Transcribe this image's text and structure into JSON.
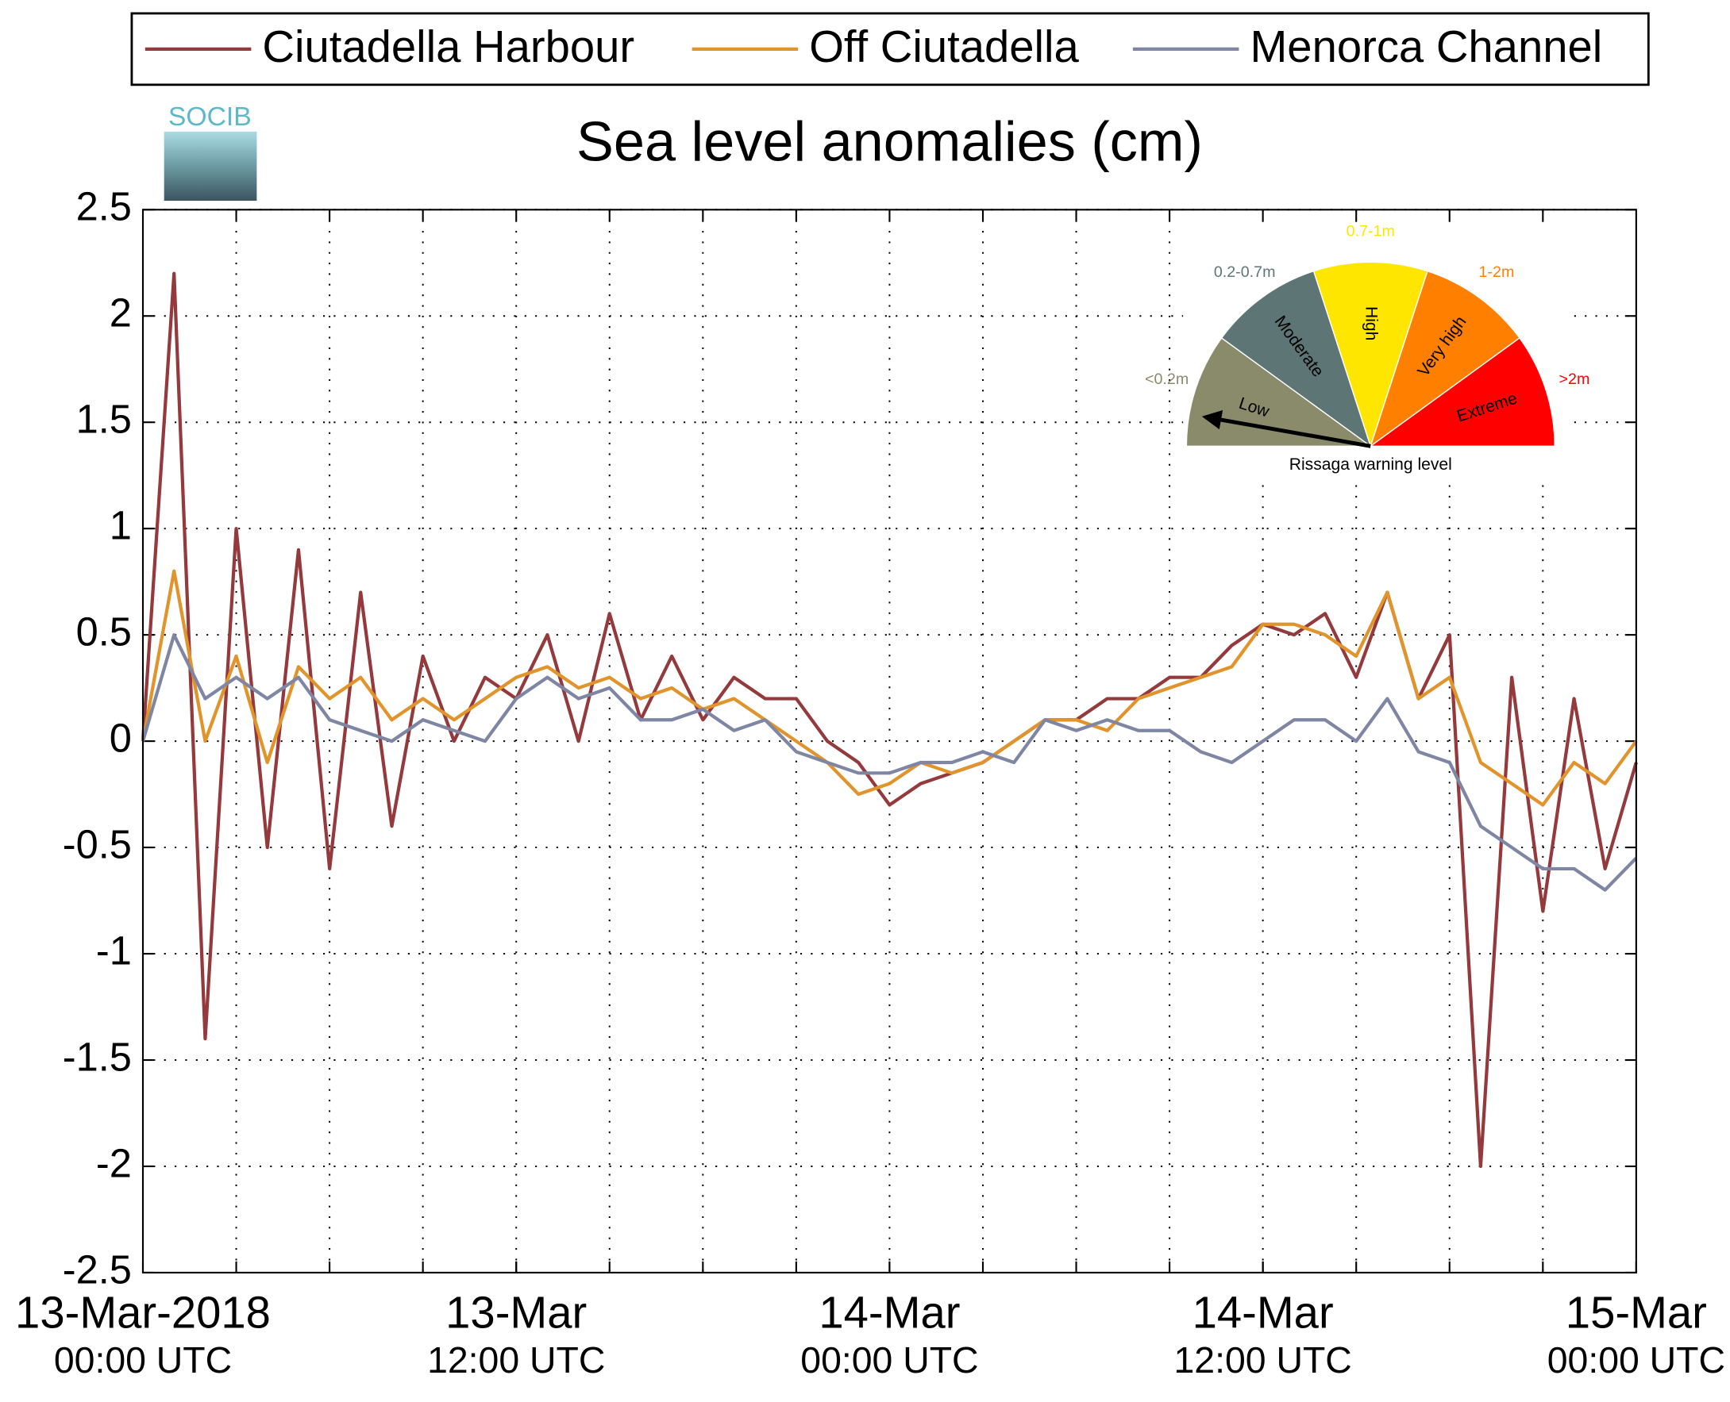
{
  "chart_data": {
    "type": "line",
    "title": "Sea level anomalies (cm)",
    "logo_text": "SOCIB",
    "x": [
      "2018-03-13T00:00",
      "2018-03-13T01:00",
      "2018-03-13T02:00",
      "2018-03-13T03:00",
      "2018-03-13T04:00",
      "2018-03-13T05:00",
      "2018-03-13T06:00",
      "2018-03-13T07:00",
      "2018-03-13T08:00",
      "2018-03-13T09:00",
      "2018-03-13T10:00",
      "2018-03-13T11:00",
      "2018-03-13T12:00",
      "2018-03-13T13:00",
      "2018-03-13T14:00",
      "2018-03-13T15:00",
      "2018-03-13T16:00",
      "2018-03-13T17:00",
      "2018-03-13T18:00",
      "2018-03-13T19:00",
      "2018-03-13T20:00",
      "2018-03-13T21:00",
      "2018-03-13T22:00",
      "2018-03-13T23:00",
      "2018-03-14T00:00",
      "2018-03-14T01:00",
      "2018-03-14T02:00",
      "2018-03-14T03:00",
      "2018-03-14T04:00",
      "2018-03-14T05:00",
      "2018-03-14T06:00",
      "2018-03-14T07:00",
      "2018-03-14T08:00",
      "2018-03-14T09:00",
      "2018-03-14T10:00",
      "2018-03-14T11:00",
      "2018-03-14T12:00",
      "2018-03-14T13:00",
      "2018-03-14T14:00",
      "2018-03-14T15:00",
      "2018-03-14T16:00",
      "2018-03-14T17:00",
      "2018-03-14T18:00",
      "2018-03-14T19:00",
      "2018-03-14T20:00",
      "2018-03-14T21:00",
      "2018-03-14T22:00",
      "2018-03-14T23:00",
      "2018-03-15T00:00"
    ],
    "series": [
      {
        "name": "Ciutadella Harbour",
        "color": "#94393c",
        "values": [
          0,
          2.2,
          -1.4,
          1.0,
          -0.5,
          0.9,
          -0.6,
          0.7,
          -0.4,
          0.4,
          0.0,
          0.3,
          0.2,
          0.5,
          0.0,
          0.6,
          0.1,
          0.4,
          0.1,
          0.3,
          0.2,
          0.2,
          0.0,
          -0.1,
          -0.3,
          -0.2,
          -0.15,
          -0.1,
          0.0,
          0.1,
          0.1,
          0.2,
          0.2,
          0.3,
          0.3,
          0.45,
          0.55,
          0.5,
          0.6,
          0.3,
          0.7,
          0.2,
          0.5,
          -2.0,
          0.3,
          -0.8,
          0.2,
          -0.6,
          -0.1
        ]
      },
      {
        "name": "Off Ciutadella",
        "color": "#e1942c",
        "values": [
          0,
          0.8,
          0.0,
          0.4,
          -0.1,
          0.35,
          0.2,
          0.3,
          0.1,
          0.2,
          0.1,
          0.2,
          0.3,
          0.35,
          0.25,
          0.3,
          0.2,
          0.25,
          0.15,
          0.2,
          0.1,
          0.0,
          -0.1,
          -0.25,
          -0.2,
          -0.1,
          -0.15,
          -0.1,
          0.0,
          0.1,
          0.1,
          0.05,
          0.2,
          0.25,
          0.3,
          0.35,
          0.55,
          0.55,
          0.5,
          0.4,
          0.7,
          0.2,
          0.3,
          -0.1,
          -0.2,
          -0.3,
          -0.1,
          -0.2,
          0.0
        ]
      },
      {
        "name": "Menorca Channel",
        "color": "#7e86a3",
        "values": [
          0,
          0.5,
          0.2,
          0.3,
          0.2,
          0.3,
          0.1,
          0.05,
          0.0,
          0.1,
          0.05,
          0.0,
          0.2,
          0.3,
          0.2,
          0.25,
          0.1,
          0.1,
          0.15,
          0.05,
          0.1,
          -0.05,
          -0.1,
          -0.15,
          -0.15,
          -0.1,
          -0.1,
          -0.05,
          -0.1,
          0.1,
          0.05,
          0.1,
          0.05,
          0.05,
          -0.05,
          -0.1,
          0.0,
          0.1,
          0.1,
          0.0,
          0.2,
          -0.05,
          -0.1,
          -0.4,
          -0.5,
          -0.6,
          -0.6,
          -0.7,
          -0.55
        ]
      }
    ],
    "xlim": [
      "2018-03-13T00:00",
      "2018-03-15T00:00"
    ],
    "xticks": [
      {
        "value": "2018-03-13T00:00",
        "label": [
          "13-Mar-2018",
          "00:00 UTC"
        ]
      },
      {
        "value": "2018-03-13T12:00",
        "label": [
          "13-Mar",
          "12:00 UTC"
        ]
      },
      {
        "value": "2018-03-14T00:00",
        "label": [
          "14-Mar",
          "00:00 UTC"
        ]
      },
      {
        "value": "2018-03-14T12:00",
        "label": [
          "14-Mar",
          "12:00 UTC"
        ]
      },
      {
        "value": "2018-03-15T00:00",
        "label": [
          "15-Mar",
          "00:00 UTC"
        ]
      }
    ],
    "xminorticks": [
      "2018-03-13T03:00",
      "2018-03-13T06:00",
      "2018-03-13T09:00",
      "2018-03-13T12:00",
      "2018-03-13T15:00",
      "2018-03-13T18:00",
      "2018-03-13T21:00",
      "2018-03-14T00:00",
      "2018-03-14T03:00",
      "2018-03-14T06:00",
      "2018-03-14T09:00",
      "2018-03-14T12:00",
      "2018-03-14T15:00",
      "2018-03-14T18:00",
      "2018-03-14T21:00"
    ],
    "ylim": [
      -2.5,
      2.5
    ],
    "yticks": [
      -2.5,
      -2,
      -1.5,
      -1,
      -0.5,
      0,
      0.5,
      1,
      1.5,
      2,
      2.5
    ],
    "grid": true,
    "legend": "top",
    "gauge": {
      "caption": "Rissaga warning level",
      "levels": [
        {
          "range": "<0.2m",
          "name": "Low",
          "color": "#8a8b6b"
        },
        {
          "range": "0.2-0.7m",
          "name": "Moderate",
          "color": "#5e7576"
        },
        {
          "range": "0.7-1m",
          "name": "High",
          "color": "#ffe600"
        },
        {
          "range": "1-2m",
          "name": "Very high",
          "color": "#ff8000"
        },
        {
          "range": ">2m",
          "name": "Extreme",
          "color": "#ff0000"
        }
      ]
    }
  }
}
